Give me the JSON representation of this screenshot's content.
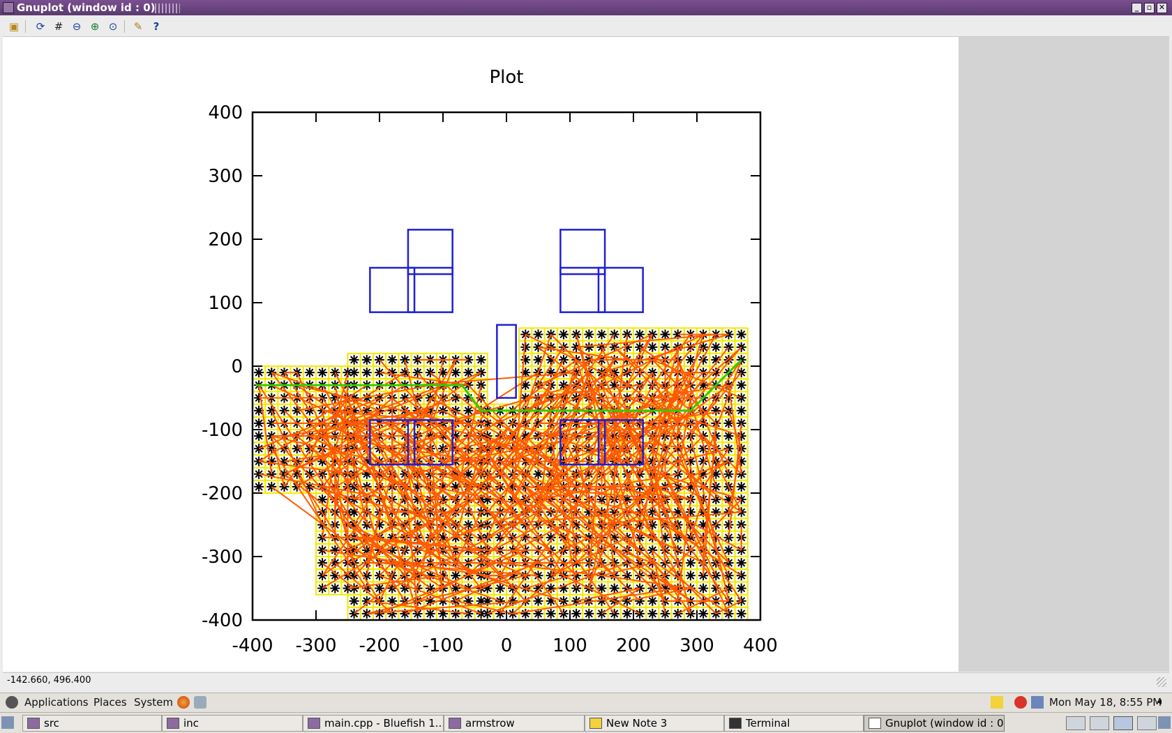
{
  "window": {
    "title": "Gnuplot (window id : 0)",
    "status_coords": "-142.660,  496.400"
  },
  "toolbar": {
    "buttons": [
      "copy-to-clipboard",
      "replot",
      "toggle-grid",
      "zoom-previous",
      "zoom-next",
      "autoscale",
      "options",
      "help"
    ]
  },
  "chart_data": {
    "type": "scatter",
    "title": "Plot",
    "xlim": [
      -400,
      400
    ],
    "ylim": [
      -400,
      400
    ],
    "xticks": [
      "-400",
      "-300",
      "-200",
      "-100",
      "0",
      "100",
      "200",
      "300",
      "400"
    ],
    "yticks": [
      "400",
      "300",
      "200",
      "100",
      "0",
      "-100",
      "-200",
      "-300",
      "-400"
    ],
    "grid": false,
    "colors": {
      "obstacles": "#1f1fd6",
      "cells": "#f2ea00",
      "points": "#000000",
      "edges": "#ff5a00",
      "path": "#33cc00"
    },
    "obstacles": [
      [
        -215,
        85,
        -145,
        155
      ],
      [
        -155,
        85,
        -85,
        155
      ],
      [
        -155,
        145,
        -85,
        215
      ],
      [
        85,
        85,
        155,
        155
      ],
      [
        85,
        145,
        155,
        215
      ],
      [
        145,
        85,
        215,
        155
      ],
      [
        -15,
        -50,
        15,
        65
      ],
      [
        -215,
        -155,
        -145,
        -85
      ],
      [
        -155,
        -155,
        -85,
        -85
      ],
      [
        85,
        -155,
        155,
        -85
      ],
      [
        145,
        -155,
        215,
        -85
      ]
    ],
    "grid_regions": [
      {
        "x": [
          -400,
          -250
        ],
        "y": [
          -200,
          -10
        ]
      },
      {
        "x": [
          -250,
          -40
        ],
        "y": [
          -400,
          20
        ]
      },
      {
        "x": [
          -40,
          20
        ],
        "y": [
          -400,
          -60
        ]
      },
      {
        "x": [
          20,
          380
        ],
        "y": [
          -400,
          60
        ]
      },
      {
        "x": [
          -300,
          -250
        ],
        "y": [
          -360,
          -200
        ]
      }
    ],
    "grid_step": 20,
    "path": [
      [
        -395,
        -30
      ],
      [
        -70,
        -30
      ],
      [
        -40,
        -70
      ],
      [
        290,
        -70
      ],
      [
        370,
        10
      ]
    ]
  },
  "desktop": {
    "menus": [
      "Applications",
      "Places",
      "System"
    ],
    "clock": "Mon May 18,  8:55 PM",
    "tasks": [
      {
        "label": "src",
        "icon": "folder-icon"
      },
      {
        "label": "inc",
        "icon": "folder-icon"
      },
      {
        "label": "main.cpp - Bluefish 1....",
        "icon": "bluefish-icon"
      },
      {
        "label": "armstrow",
        "icon": "home-folder-icon"
      },
      {
        "label": "New Note 3",
        "icon": "note-icon"
      },
      {
        "label": "Terminal",
        "icon": "terminal-icon"
      },
      {
        "label": "Gnuplot (window id : 0)",
        "icon": "gnuplot-icon",
        "active": true
      }
    ]
  }
}
